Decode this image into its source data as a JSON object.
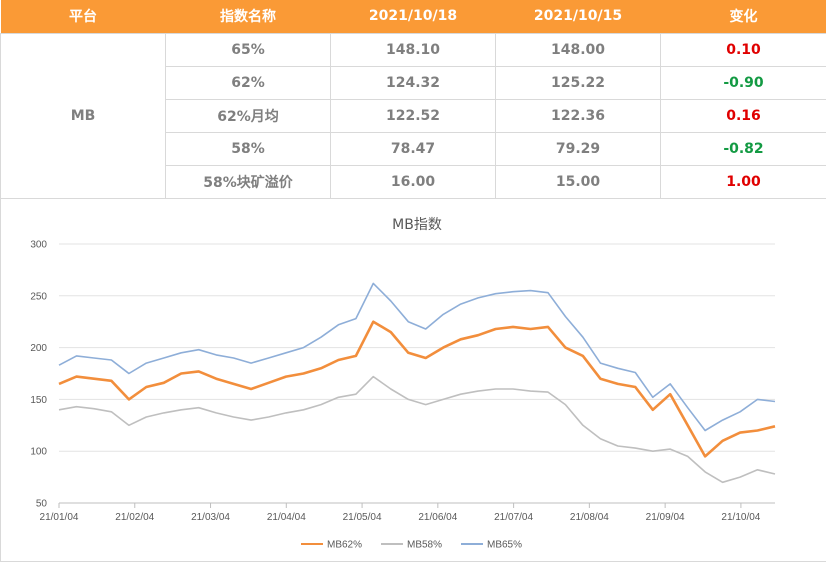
{
  "table": {
    "headers": [
      "平台",
      "指数名称",
      "2021/10/18",
      "2021/10/15",
      "变化"
    ],
    "platform": "MB",
    "rows": [
      {
        "name": "65%",
        "d1": "148.10",
        "d2": "148.00",
        "change": "0.10",
        "dir": "up"
      },
      {
        "name": "62%",
        "d1": "124.32",
        "d2": "125.22",
        "change": "-0.90",
        "dir": "down"
      },
      {
        "name": "62%月均",
        "d1": "122.52",
        "d2": "122.36",
        "change": "0.16",
        "dir": "up"
      },
      {
        "name": "58%",
        "d1": "78.47",
        "d2": "79.29",
        "change": "-0.82",
        "dir": "down"
      },
      {
        "name": "58%块矿溢价",
        "d1": "16.00",
        "d2": "15.00",
        "change": "1.00",
        "dir": "up"
      }
    ],
    "colors": {
      "header_bg": "#fa9a36",
      "up": "#e00000",
      "down": "#139a43"
    }
  },
  "chart_data": {
    "type": "line",
    "title": "MB指数",
    "xlabel": "",
    "ylabel": "",
    "ylim": [
      50,
      300
    ],
    "yticks": [
      "300",
      "250",
      "200",
      "150",
      "100",
      "50"
    ],
    "xticks": [
      "21/01/04",
      "21/02/04",
      "21/03/04",
      "21/04/04",
      "21/05/04",
      "21/06/04",
      "21/07/04",
      "21/08/04",
      "21/09/04",
      "21/10/04"
    ],
    "x": [
      "21/01/04",
      "21/01/11",
      "21/01/18",
      "21/01/25",
      "21/02/01",
      "21/02/08",
      "21/02/15",
      "21/02/22",
      "21/03/01",
      "21/03/08",
      "21/03/15",
      "21/03/22",
      "21/03/29",
      "21/04/05",
      "21/04/12",
      "21/04/19",
      "21/04/26",
      "21/05/03",
      "21/05/10",
      "21/05/17",
      "21/05/24",
      "21/05/31",
      "21/06/07",
      "21/06/14",
      "21/06/21",
      "21/06/28",
      "21/07/05",
      "21/07/12",
      "21/07/19",
      "21/07/26",
      "21/08/02",
      "21/08/09",
      "21/08/16",
      "21/08/23",
      "21/08/30",
      "21/09/06",
      "21/09/13",
      "21/09/20",
      "21/09/27",
      "21/10/04",
      "21/10/11",
      "21/10/18"
    ],
    "grid": true,
    "legend": "bottom",
    "series": [
      {
        "name": "MB62%",
        "color": "#f28e3c",
        "values": [
          165,
          172,
          170,
          168,
          150,
          162,
          166,
          175,
          177,
          170,
          165,
          160,
          166,
          172,
          175,
          180,
          188,
          192,
          225,
          215,
          195,
          190,
          200,
          208,
          212,
          218,
          220,
          218,
          220,
          200,
          192,
          170,
          165,
          162,
          140,
          155,
          125,
          95,
          110,
          118,
          120,
          124
        ]
      },
      {
        "name": "MB58%",
        "color": "#bfbfbf",
        "values": [
          140,
          143,
          141,
          138,
          125,
          133,
          137,
          140,
          142,
          137,
          133,
          130,
          133,
          137,
          140,
          145,
          152,
          155,
          172,
          160,
          150,
          145,
          150,
          155,
          158,
          160,
          160,
          158,
          157,
          145,
          125,
          112,
          105,
          103,
          100,
          102,
          95,
          80,
          70,
          75,
          82,
          78
        ]
      },
      {
        "name": "MB65%",
        "color": "#8eaed8",
        "values": [
          183,
          192,
          190,
          188,
          175,
          185,
          190,
          195,
          198,
          193,
          190,
          185,
          190,
          195,
          200,
          210,
          222,
          228,
          262,
          245,
          225,
          218,
          232,
          242,
          248,
          252,
          254,
          255,
          253,
          230,
          210,
          185,
          180,
          176,
          152,
          165,
          142,
          120,
          130,
          138,
          150,
          148
        ]
      }
    ]
  }
}
